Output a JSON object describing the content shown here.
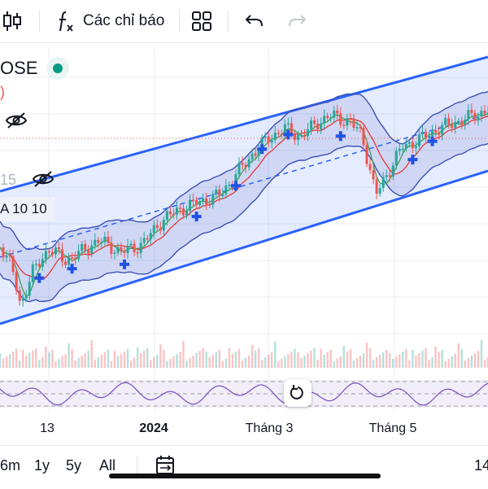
{
  "toolbar": {
    "indicators_label": "Các chỉ báo"
  },
  "legend": {
    "symbol_fragment": "OSE",
    "change_fragment": ")",
    "indicator_value_fragment": "15",
    "ma_label": "A 10 10"
  },
  "time_axis": {
    "ticks": [
      "13",
      "2024",
      "Tháng 3",
      "Tháng 5"
    ]
  },
  "bottom_bar": {
    "ranges": [
      "6m",
      "1y",
      "5y",
      "All"
    ],
    "right_value": "14"
  },
  "colors": {
    "up": "#26a69a",
    "down": "#ef5350",
    "channel_line": "#2962ff",
    "channel_fill": "#2962ff",
    "bollinger": "#3f51b5",
    "ma_red": "#e53935",
    "ma_green": "#43a047",
    "oscillator": "#7e57c2",
    "status_dot": "#089981"
  },
  "icons": {
    "candles": "candlestick-icon",
    "fx": "function-icon",
    "templates": "grid-icon",
    "undo": "undo-icon",
    "redo": "redo-icon",
    "eye_off": "eye-off-icon",
    "reset": "reset-icon",
    "calendar": "calendar-range-icon"
  }
}
